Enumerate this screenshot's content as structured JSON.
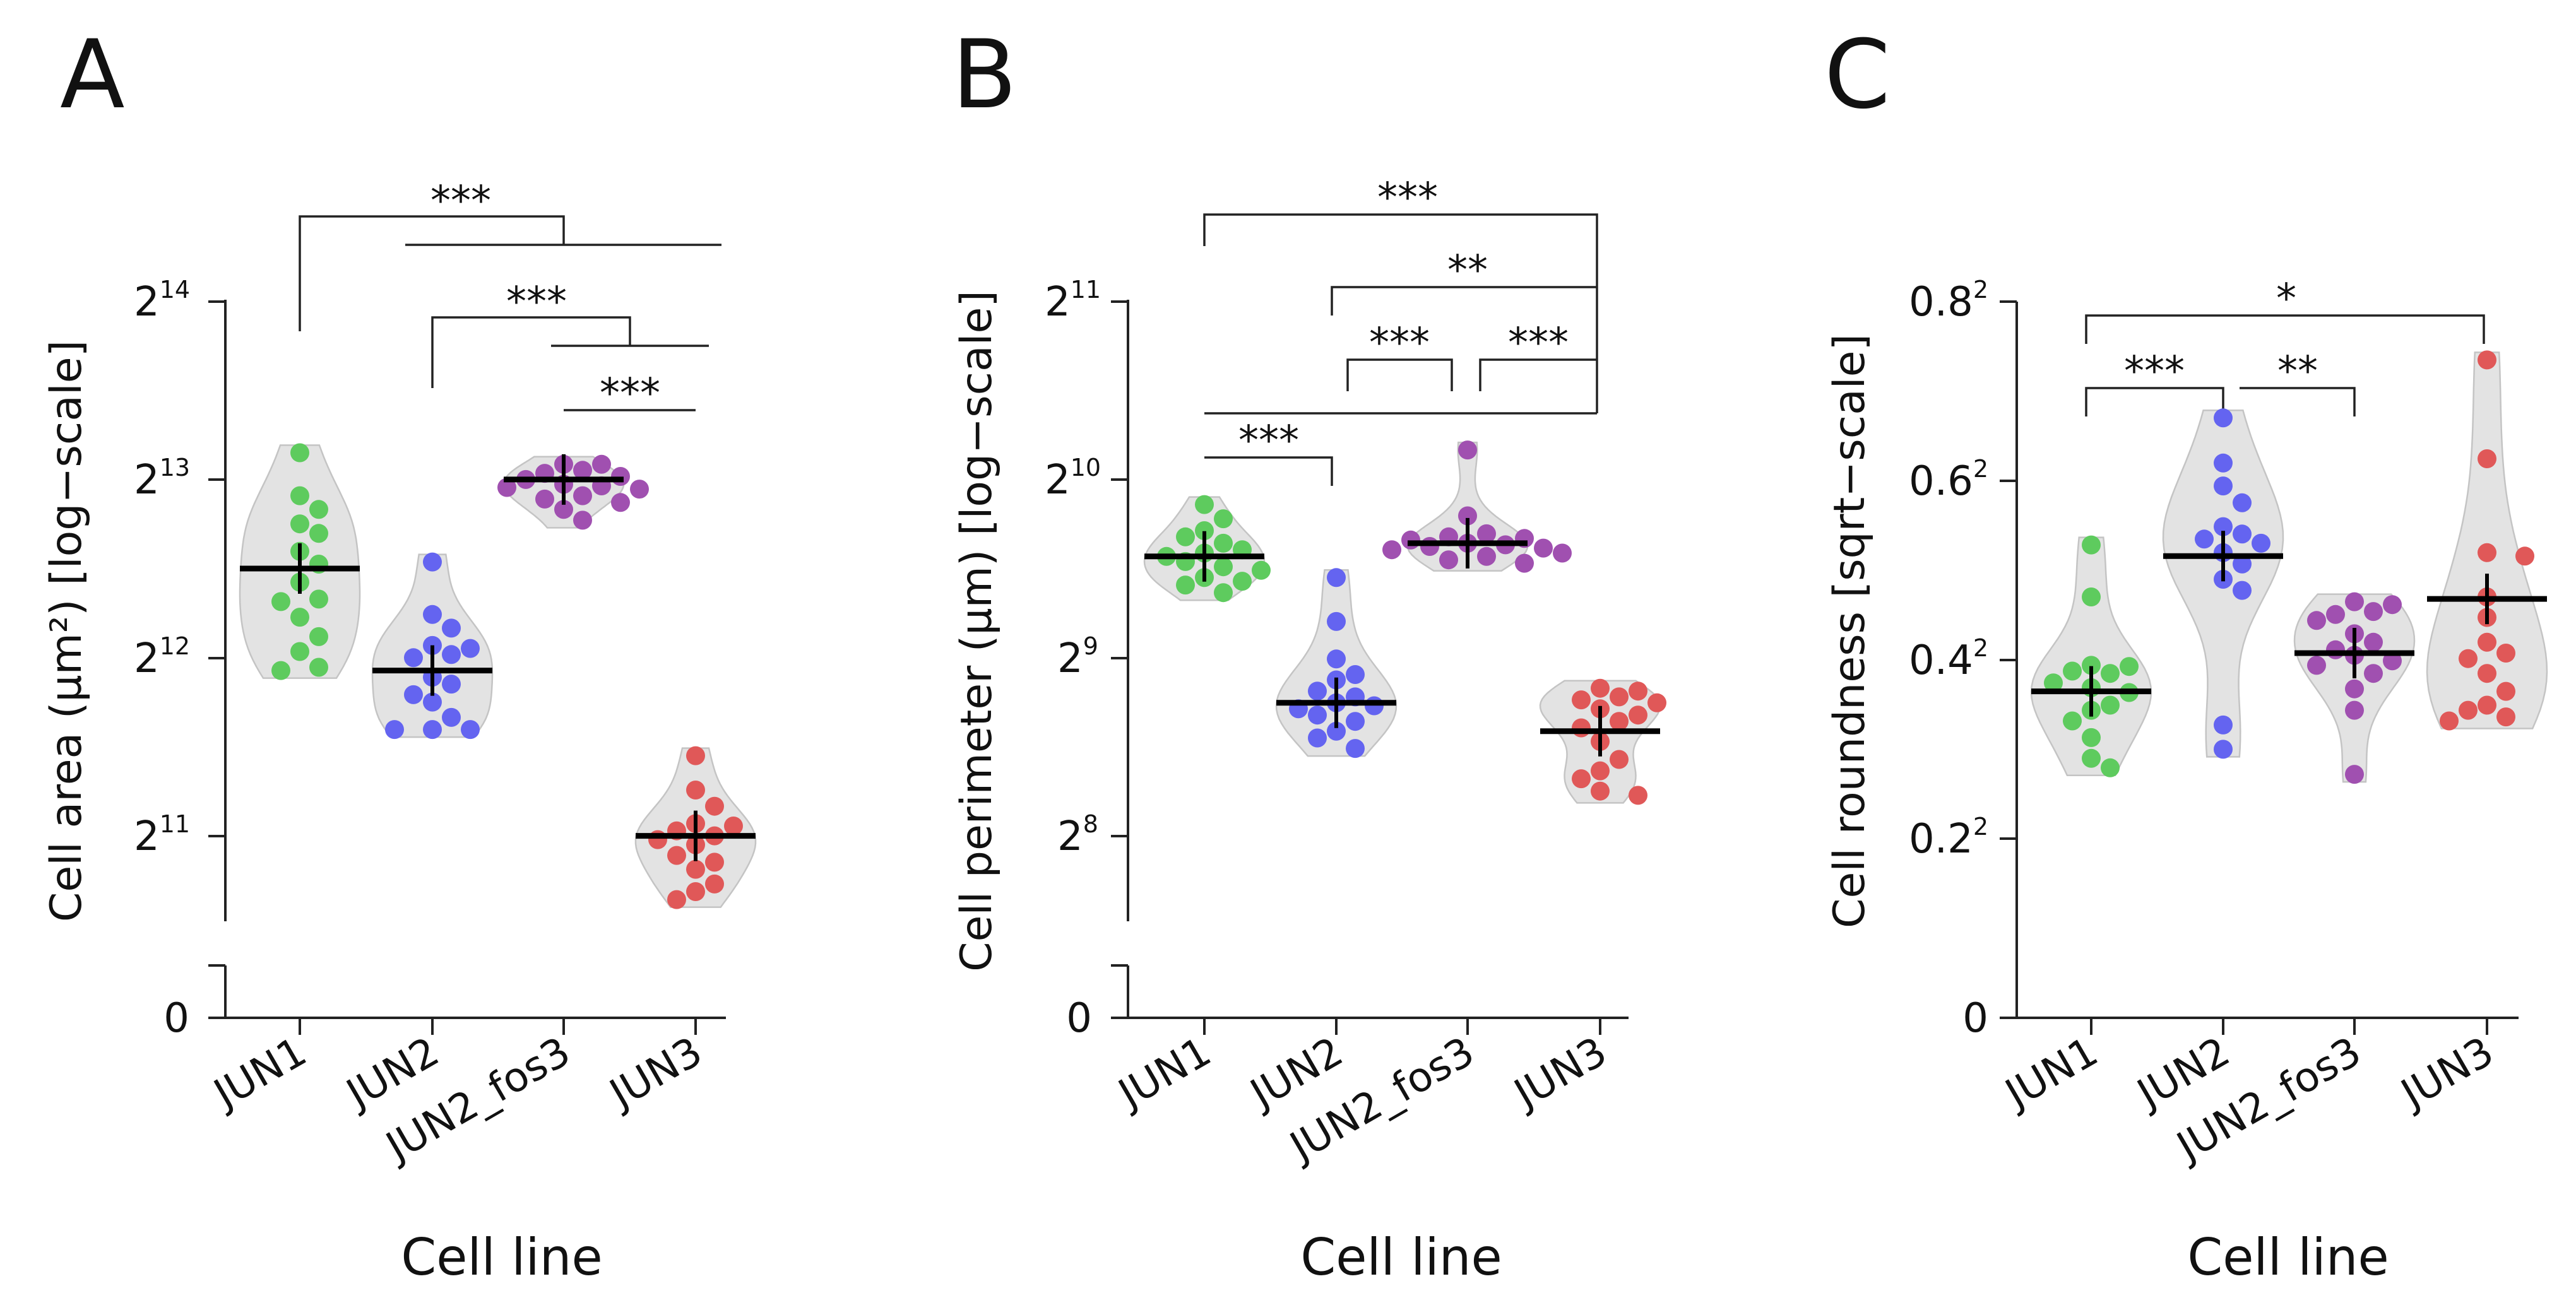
{
  "chart_data": [
    {
      "panel": "A",
      "type": "violin-scatter",
      "xlabel": "Cell line",
      "ylabel": "Cell area (µm²) [log−scale]",
      "yscale": "log2",
      "categories": [
        "JUN1",
        "JUN2",
        "JUN2_fos3",
        "JUN3"
      ],
      "colors": [
        "#5ecb5e",
        "#6464f0",
        "#a050b0",
        "#e05858"
      ],
      "yticks": [
        {
          "base": "2",
          "exp": "14",
          "value": 16384
        },
        {
          "base": "2",
          "exp": "13",
          "value": 8192
        },
        {
          "base": "2",
          "exp": "12",
          "value": 4096
        },
        {
          "base": "2",
          "exp": "11",
          "value": 2048
        }
      ],
      "zero_tick": "0",
      "ylim": [
        1450,
        16384
      ],
      "series": [
        {
          "name": "JUN1",
          "values": [
            9100,
            7700,
            7300,
            6900,
            6650,
            6200,
            5900,
            5500,
            5150,
            5100,
            4800,
            4450,
            4200,
            3950,
            3900
          ],
          "mean": 5800
        },
        {
          "name": "JUN2",
          "values": [
            5950,
            4850,
            4600,
            4300,
            4250,
            4150,
            4100,
            3800,
            3700,
            3550,
            3450,
            3250,
            3100,
            3100,
            3100
          ],
          "mean": 3900
        },
        {
          "name": "JUN2_fos3",
          "values": [
            8700,
            8700,
            8500,
            8400,
            8300,
            8200,
            8050,
            8000,
            7950,
            7900,
            7700,
            7600,
            7500,
            7300,
            7000
          ],
          "mean": 8200
        },
        {
          "name": "JUN3",
          "values": [
            2800,
            2450,
            2300,
            2150,
            2130,
            2090,
            2050,
            2020,
            1980,
            1900,
            1850,
            1800,
            1700,
            1650,
            1600
          ],
          "mean": 2050
        }
      ],
      "significance": [
        {
          "label": "***"
        },
        {
          "label": "***"
        },
        {
          "label": "***"
        }
      ]
    },
    {
      "panel": "B",
      "type": "violin-scatter",
      "xlabel": "Cell line",
      "ylabel": "Cell perimeter (µm) [log−scale]",
      "yscale": "log2",
      "categories": [
        "JUN1",
        "JUN2",
        "JUN2_fos3",
        "JUN3"
      ],
      "colors": [
        "#5ecb5e",
        "#6464f0",
        "#a050b0",
        "#e05858"
      ],
      "yticks": [
        {
          "base": "2",
          "exp": "11",
          "value": 2048
        },
        {
          "base": "2",
          "exp": "10",
          "value": 1024
        },
        {
          "base": "2",
          "exp": "9",
          "value": 512
        },
        {
          "base": "2",
          "exp": "8",
          "value": 256
        }
      ],
      "zero_tick": "0",
      "ylim": [
        190,
        2048
      ],
      "series": [
        {
          "name": "JUN1",
          "values": [
            930,
            880,
            840,
            820,
            800,
            780,
            770,
            760,
            745,
            730,
            720,
            700,
            690,
            680,
            660
          ],
          "mean": 760
        },
        {
          "name": "JUN2",
          "values": [
            700,
            590,
            510,
            480,
            470,
            450,
            440,
            430,
            425,
            420,
            410,
            400,
            385,
            375,
            360
          ],
          "mean": 430
        },
        {
          "name": "JUN2_fos3",
          "values": [
            1150,
            890,
            830,
            820,
            815,
            810,
            800,
            795,
            790,
            785,
            780,
            770,
            760,
            750,
            740
          ],
          "mean": 800
        },
        {
          "name": "JUN3",
          "values": [
            455,
            450,
            440,
            435,
            430,
            420,
            410,
            400,
            390,
            370,
            345,
            330,
            320,
            305,
            300
          ],
          "mean": 385
        }
      ],
      "significance": [
        {
          "label": "***"
        },
        {
          "label": "**"
        },
        {
          "label": "***"
        },
        {
          "label": "***"
        },
        {
          "label": "***"
        }
      ]
    },
    {
      "panel": "C",
      "type": "violin-scatter",
      "xlabel": "Cell line",
      "ylabel": "Cell roundness [sqrt−scale]",
      "yscale": "sqrt",
      "categories": [
        "JUN1",
        "JUN2",
        "JUN2_fos3",
        "JUN3"
      ],
      "colors": [
        "#5ecb5e",
        "#6464f0",
        "#a050b0",
        "#e05858"
      ],
      "yticks": [
        {
          "base": "0.8",
          "exp": "2",
          "value": 0.64
        },
        {
          "base": "0.6",
          "exp": "2",
          "value": 0.36
        },
        {
          "base": "0.4",
          "exp": "2",
          "value": 0.16
        },
        {
          "base": "0.2",
          "exp": "2",
          "value": 0.04
        },
        {
          "base": "0",
          "exp": "",
          "value": 0
        }
      ],
      "ylim": [
        0,
        0.64
      ],
      "series": [
        {
          "name": "JUN1",
          "values": [
            0.279,
            0.221,
            0.155,
            0.154,
            0.15,
            0.148,
            0.14,
            0.136,
            0.132,
            0.122,
            0.118,
            0.11,
            0.098,
            0.084,
            0.078
          ],
          "mean": 0.133
        },
        {
          "name": "JUN2",
          "values": [
            0.449,
            0.384,
            0.353,
            0.331,
            0.301,
            0.292,
            0.286,
            0.281,
            0.27,
            0.257,
            0.24,
            0.228,
            0.107,
            0.09
          ],
          "mean": 0.266
        },
        {
          "name": "JUN2_fos3",
          "values": [
            0.216,
            0.213,
            0.206,
            0.203,
            0.197,
            0.184,
            0.176,
            0.169,
            0.164,
            0.159,
            0.155,
            0.148,
            0.135,
            0.118,
            0.074
          ],
          "mean": 0.166
        },
        {
          "name": "JUN3",
          "values": [
            0.54,
            0.39,
            0.27,
            0.266,
            0.221,
            0.2,
            0.176,
            0.166,
            0.161,
            0.148,
            0.133,
            0.122,
            0.118,
            0.113,
            0.11
          ],
          "mean": 0.219
        }
      ],
      "significance": [
        {
          "label": "*"
        },
        {
          "label": "***"
        },
        {
          "label": "**"
        }
      ]
    }
  ]
}
